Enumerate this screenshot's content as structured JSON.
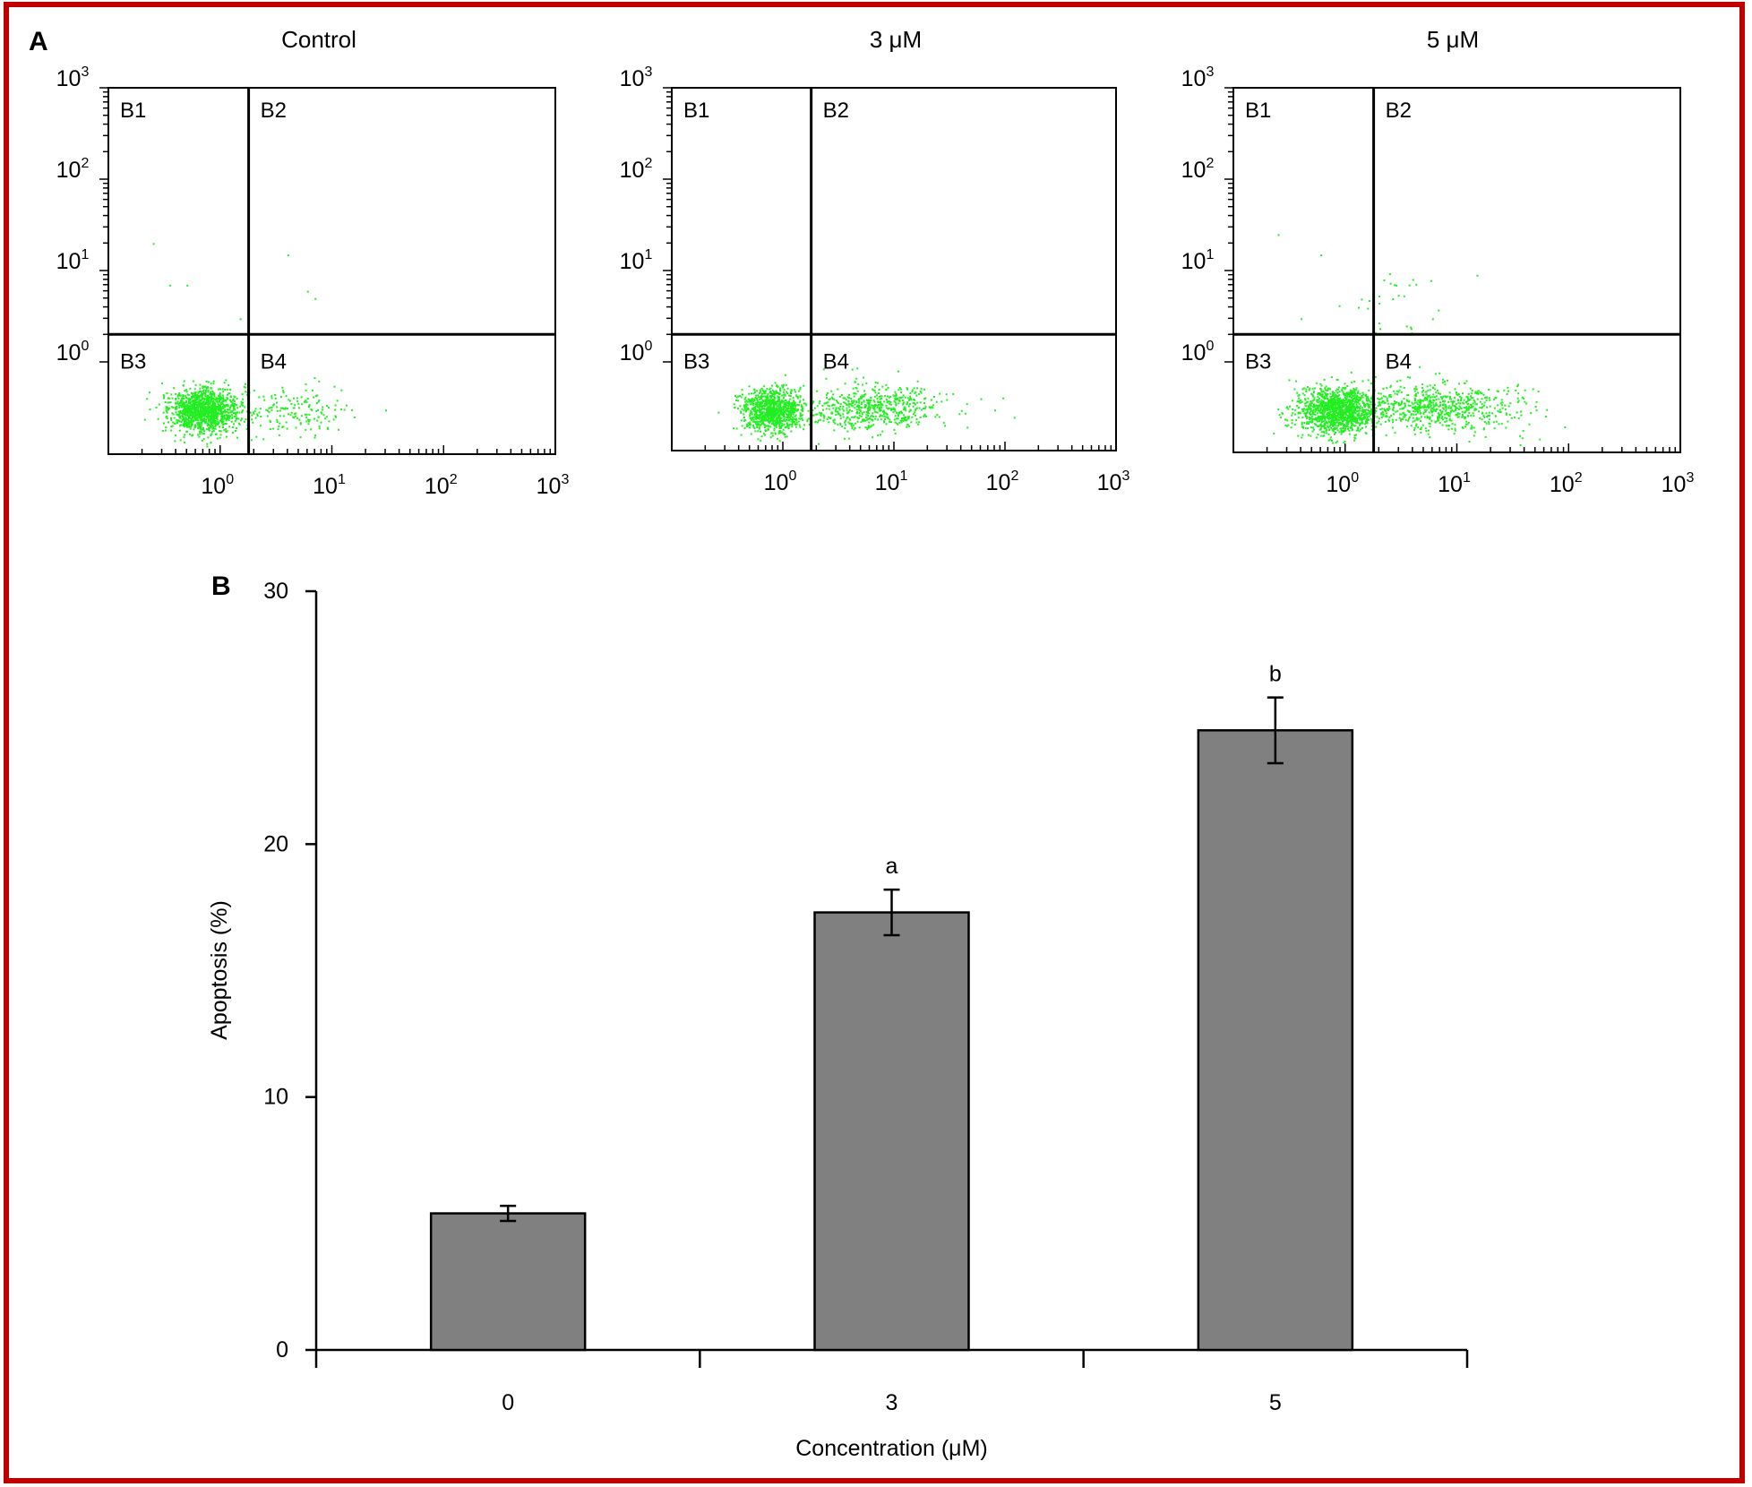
{
  "figure": {
    "border_color": "#c00000",
    "panel_a_label": "A",
    "panel_b_label": "B",
    "dot_color": "#22ee22",
    "bar_color": "#808080"
  },
  "chart_data": [
    {
      "type": "scatter",
      "title": "Control",
      "scale": "log",
      "x_ticks": [
        {
          "base": "10",
          "exp": "0"
        },
        {
          "base": "10",
          "exp": "1"
        },
        {
          "base": "10",
          "exp": "2"
        },
        {
          "base": "10",
          "exp": "3"
        }
      ],
      "y_ticks": [
        {
          "base": "10",
          "exp": "0"
        },
        {
          "base": "10",
          "exp": "1"
        },
        {
          "base": "10",
          "exp": "2"
        },
        {
          "base": "10",
          "exp": "3"
        }
      ],
      "quadrants": [
        "B1",
        "B2",
        "B3",
        "B4"
      ],
      "gate": {
        "x": 1.8,
        "y": 2.0
      },
      "clusters": [
        {
          "n": 1300,
          "cx": 0.7,
          "cy": 0.3,
          "sx": 0.16,
          "sy": 0.12
        },
        {
          "n": 160,
          "cx": 4.5,
          "cy": 0.3,
          "sx": 0.22,
          "sy": 0.12
        }
      ],
      "outliers": [
        [
          0.25,
          20
        ],
        [
          0.35,
          7
        ],
        [
          0.5,
          7
        ],
        [
          1.5,
          3
        ],
        [
          4,
          15
        ],
        [
          6,
          6
        ],
        [
          7,
          5
        ],
        [
          12,
          0.5
        ],
        [
          30,
          0.3
        ]
      ]
    },
    {
      "type": "scatter",
      "title": "3 μM",
      "scale": "log",
      "x_ticks": [
        {
          "base": "10",
          "exp": "0"
        },
        {
          "base": "10",
          "exp": "1"
        },
        {
          "base": "10",
          "exp": "2"
        },
        {
          "base": "10",
          "exp": "3"
        }
      ],
      "y_ticks": [
        {
          "base": "10",
          "exp": "0"
        },
        {
          "base": "10",
          "exp": "1"
        },
        {
          "base": "10",
          "exp": "2"
        },
        {
          "base": "10",
          "exp": "3"
        }
      ],
      "quadrants": [
        "B1",
        "B2",
        "B3",
        "B4"
      ],
      "gate": {
        "x": 1.8,
        "y": 2.0
      },
      "clusters": [
        {
          "n": 1000,
          "cx": 0.8,
          "cy": 0.3,
          "sx": 0.13,
          "sy": 0.12
        },
        {
          "n": 600,
          "cx": 6.0,
          "cy": 0.32,
          "sx": 0.32,
          "sy": 0.13
        }
      ],
      "outliers": [
        [
          60,
          0.4
        ],
        [
          80,
          0.3
        ],
        [
          120,
          0.25
        ]
      ]
    },
    {
      "type": "scatter",
      "title": "5 μM",
      "scale": "log",
      "x_ticks": [
        {
          "base": "10",
          "exp": "0"
        },
        {
          "base": "10",
          "exp": "1"
        },
        {
          "base": "10",
          "exp": "2"
        },
        {
          "base": "10",
          "exp": "3"
        }
      ],
      "y_ticks": [
        {
          "base": "10",
          "exp": "0"
        },
        {
          "base": "10",
          "exp": "1"
        },
        {
          "base": "10",
          "exp": "2"
        },
        {
          "base": "10",
          "exp": "3"
        }
      ],
      "quadrants": [
        "B1",
        "B2",
        "B3",
        "B4"
      ],
      "gate": {
        "x": 1.8,
        "y": 2.0
      },
      "clusters": [
        {
          "n": 1300,
          "cx": 0.85,
          "cy": 0.3,
          "sx": 0.18,
          "sy": 0.12
        },
        {
          "n": 700,
          "cx": 7.0,
          "cy": 0.32,
          "sx": 0.34,
          "sy": 0.13
        },
        {
          "n": 25,
          "cx": 2.5,
          "cy": 4.0,
          "sx": 0.2,
          "sy": 0.25
        }
      ],
      "outliers": [
        [
          0.25,
          25
        ],
        [
          0.6,
          15
        ],
        [
          0.4,
          3
        ],
        [
          1.3,
          4
        ],
        [
          2.2,
          8
        ],
        [
          15,
          9
        ],
        [
          6,
          3
        ],
        [
          40,
          0.5
        ],
        [
          3.5,
          2.5
        ]
      ]
    },
    {
      "type": "bar",
      "categories": [
        "0",
        "3",
        "5"
      ],
      "values": [
        5.4,
        17.3,
        24.5
      ],
      "errors": [
        0.3,
        0.9,
        1.3
      ],
      "significance": [
        "",
        "a",
        "b"
      ],
      "ylim": [
        0,
        30
      ],
      "yticks": [
        0,
        10,
        20,
        30
      ],
      "xlabel": "Concentration (μM)",
      "ylabel": "Apoptosis (%)"
    }
  ]
}
